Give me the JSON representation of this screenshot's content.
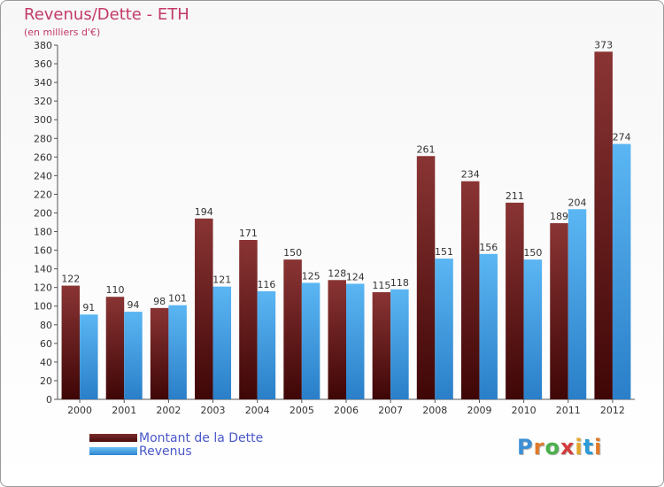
{
  "chart_data": {
    "type": "bar",
    "title": "Revenus/Dette - ETH",
    "subtitle": "(en milliers d'€)",
    "categories": [
      "2000",
      "2001",
      "2002",
      "2003",
      "2004",
      "2005",
      "2006",
      "2007",
      "2008",
      "2009",
      "2010",
      "2011",
      "2012"
    ],
    "series": [
      {
        "name": "Montant de la Dette",
        "color": "#7a2424",
        "values": [
          122,
          110,
          98,
          194,
          171,
          150,
          128,
          115,
          261,
          234,
          211,
          189,
          373
        ]
      },
      {
        "name": "Revenus",
        "color": "#4aa8ec",
        "values": [
          91,
          94,
          101,
          121,
          116,
          125,
          124,
          118,
          151,
          156,
          150,
          204,
          274
        ]
      }
    ],
    "ylim": [
      0,
      380
    ],
    "yticks": [
      0,
      20,
      40,
      60,
      80,
      100,
      120,
      140,
      160,
      180,
      200,
      220,
      240,
      260,
      280,
      300,
      320,
      340,
      360,
      380
    ],
    "grid": false,
    "legend": "bottom-left"
  },
  "logo": {
    "letters": [
      "P",
      "r",
      "o",
      "x",
      "i",
      "t",
      "i"
    ],
    "colors": [
      "#3c8fd6",
      "#e07a2a",
      "#4ab04a",
      "#d43c3c",
      "#e2a72a",
      "#2a9bd6",
      "#e07a2a"
    ]
  }
}
